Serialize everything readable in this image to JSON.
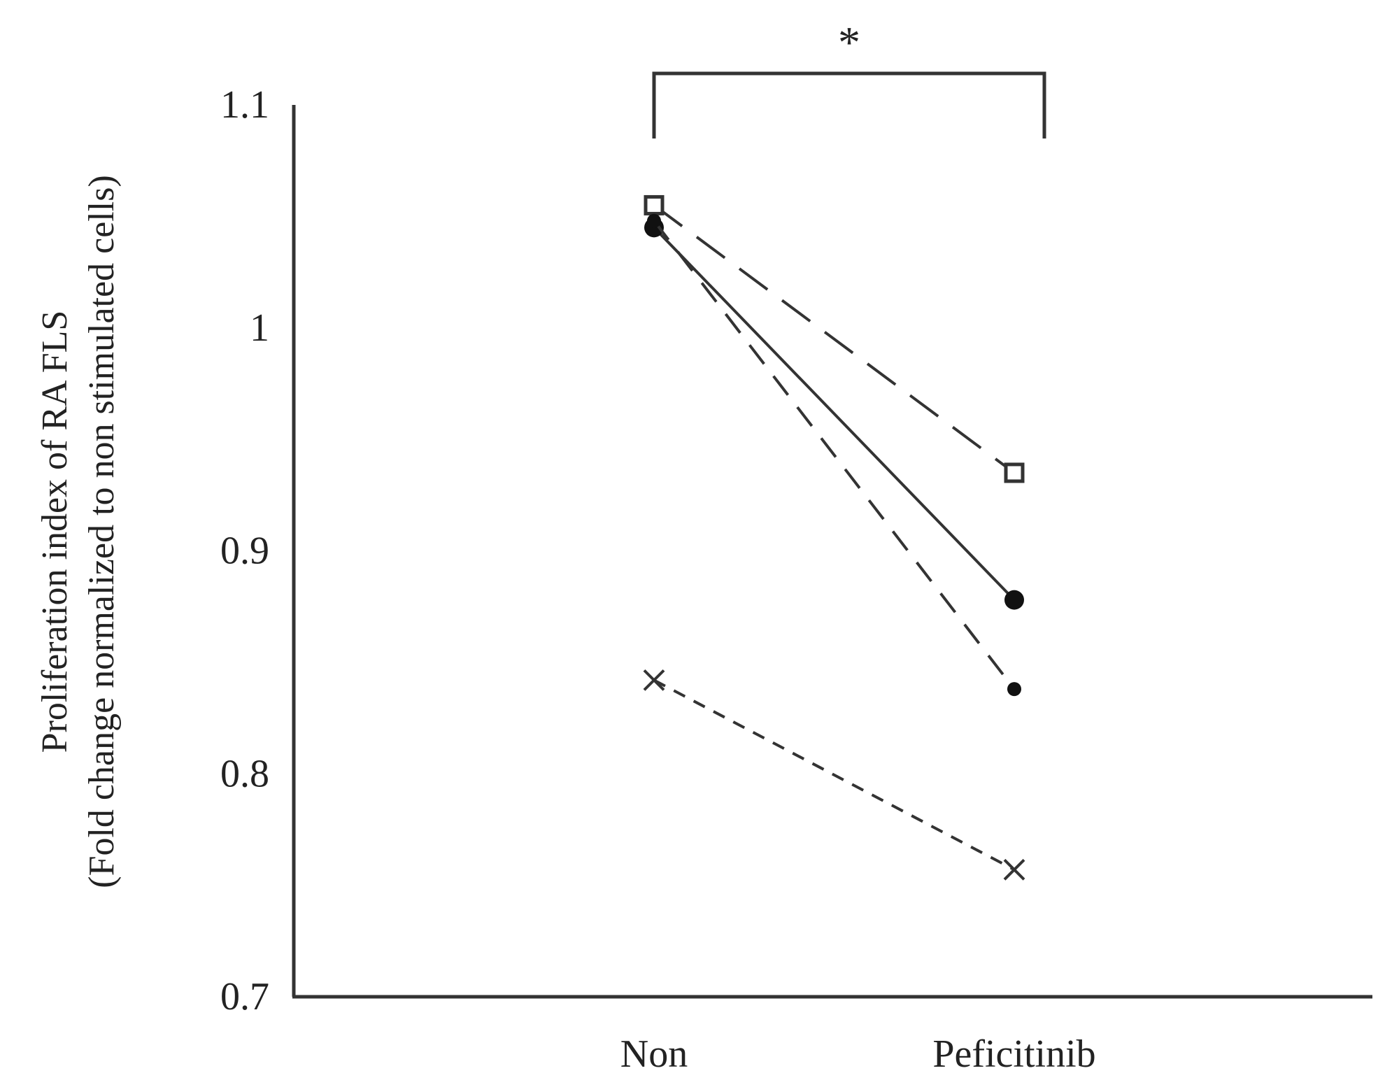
{
  "chart_data": {
    "type": "line",
    "title": "",
    "ylabel_lines": [
      "Proliferation index of RA FLS",
      "(Fold change normalized to non stimulated cells)"
    ],
    "xlabel": "",
    "categories": [
      "Non",
      "Peficitinib"
    ],
    "ylim": [
      0.7,
      1.1
    ],
    "yticks": [
      "0.7",
      "0.8",
      "0.9",
      "1",
      "1.1"
    ],
    "ytick_values": [
      0.7,
      0.8,
      0.9,
      1.0,
      1.1
    ],
    "grid": false,
    "legend": "none",
    "series": [
      {
        "marker": "square",
        "line_style": "long-dash",
        "values": [
          1.055,
          0.935
        ]
      },
      {
        "marker": "circle-filled",
        "line_style": "solid",
        "values": [
          1.045,
          0.878
        ]
      },
      {
        "marker": "dot-filled",
        "line_style": "dash",
        "values": [
          1.048,
          0.838
        ]
      },
      {
        "marker": "x",
        "line_style": "short-dash",
        "values": [
          0.842,
          0.757
        ]
      }
    ],
    "significance": {
      "label": "*",
      "between": [
        "Non",
        "Peficitinib"
      ]
    }
  }
}
